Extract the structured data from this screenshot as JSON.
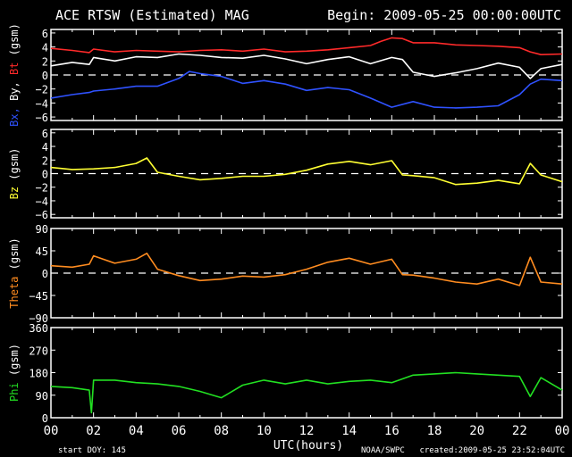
{
  "header": {
    "title": "ACE RTSW (Estimated) MAG",
    "begin": "Begin: 2009-05-25 00:00:00UTC"
  },
  "footer": {
    "start_doy": "start DOY: 145",
    "xlabel": "UTC(hours)",
    "source": "NOAA/SWPC",
    "created": "created:2009-05-25 23:52:04UTC"
  },
  "x_ticks": [
    "00",
    "02",
    "04",
    "06",
    "08",
    "10",
    "12",
    "14",
    "16",
    "18",
    "20",
    "22",
    "00"
  ],
  "colors": {
    "bx": "#2f52ff",
    "by": "#ffffff",
    "bt": "#ff2a2a",
    "bz": "#ffff33",
    "theta": "#ff8c20",
    "phi": "#22e022",
    "axis": "#ffffff"
  },
  "chart_data": [
    {
      "type": "line",
      "ylabel_parts": [
        "Bx,",
        " By,",
        " Bt",
        " (gsm)"
      ],
      "ylim": [
        -6.5,
        6.5
      ],
      "yticks": [
        6,
        4,
        2,
        0,
        -2,
        -4,
        -6
      ],
      "xlim": [
        0,
        24
      ],
      "zero_line": true,
      "series": [
        {
          "key": "bt",
          "x": [
            0,
            1,
            1.8,
            2,
            3,
            4,
            5,
            6,
            7,
            8,
            9,
            10,
            11,
            12,
            13,
            14,
            15,
            15.5,
            16,
            16.5,
            17,
            18,
            19,
            20,
            21,
            22,
            22.5,
            23,
            24
          ],
          "values": [
            3.8,
            3.5,
            3.2,
            3.7,
            3.3,
            3.5,
            3.4,
            3.3,
            3.5,
            3.6,
            3.4,
            3.7,
            3.3,
            3.4,
            3.6,
            3.9,
            4.2,
            4.8,
            5.3,
            5.2,
            4.6,
            4.6,
            4.3,
            4.2,
            4.1,
            3.9,
            3.3,
            2.9,
            3.0
          ]
        },
        {
          "key": "by",
          "x": [
            0,
            1,
            1.8,
            2,
            3,
            4,
            5,
            6,
            7,
            8,
            9,
            10,
            11,
            12,
            13,
            14,
            15,
            16,
            16.5,
            17,
            18,
            19,
            20,
            21,
            22,
            22.5,
            23,
            24
          ],
          "values": [
            1.3,
            1.8,
            1.5,
            2.5,
            2.0,
            2.6,
            2.5,
            3.0,
            2.8,
            2.5,
            2.4,
            2.8,
            2.3,
            1.6,
            2.2,
            2.6,
            1.6,
            2.5,
            2.2,
            0.4,
            -0.2,
            0.3,
            0.9,
            1.7,
            1.1,
            -0.5,
            0.9,
            1.5
          ]
        },
        {
          "key": "bx",
          "x": [
            0,
            1,
            1.8,
            2,
            3,
            4,
            5,
            6,
            6.5,
            7,
            8,
            9,
            10,
            11,
            12,
            13,
            14,
            15,
            16,
            17,
            18,
            19,
            20,
            21,
            22,
            22.5,
            23,
            24
          ],
          "values": [
            -3.3,
            -2.8,
            -2.5,
            -2.3,
            -2.0,
            -1.6,
            -1.6,
            -0.5,
            0.5,
            0.2,
            -0.2,
            -1.2,
            -0.8,
            -1.3,
            -2.2,
            -1.8,
            -2.1,
            -3.3,
            -4.6,
            -3.8,
            -4.6,
            -4.7,
            -4.6,
            -4.4,
            -2.8,
            -1.3,
            -0.6,
            -0.8
          ]
        }
      ]
    },
    {
      "type": "line",
      "ylabel": "Bz  (gsm)",
      "ylim": [
        -6.5,
        6.5
      ],
      "yticks": [
        6,
        4,
        2,
        0,
        -2,
        -4,
        -6
      ],
      "xlim": [
        0,
        24
      ],
      "zero_line": true,
      "series": [
        {
          "key": "bz",
          "x": [
            0,
            1,
            2,
            3,
            4,
            4.5,
            5,
            6,
            7,
            8,
            9,
            10,
            11,
            12,
            13,
            14,
            15,
            16,
            16.5,
            17,
            18,
            19,
            20,
            21,
            22,
            22.5,
            23,
            24
          ],
          "values": [
            0.9,
            0.6,
            0.7,
            0.9,
            1.5,
            2.3,
            0.2,
            -0.4,
            -0.9,
            -0.7,
            -0.4,
            -0.4,
            -0.1,
            0.5,
            1.4,
            1.8,
            1.3,
            1.9,
            -0.2,
            -0.3,
            -0.6,
            -1.6,
            -1.4,
            -1.0,
            -1.5,
            1.5,
            -0.2,
            -1.2
          ]
        }
      ]
    },
    {
      "type": "line",
      "ylabel": "Theta  (gsm)",
      "ylim": [
        -90,
        90
      ],
      "yticks": [
        90,
        45,
        0,
        -45,
        -90
      ],
      "xlim": [
        0,
        24
      ],
      "zero_line": true,
      "series": [
        {
          "key": "theta",
          "x": [
            0,
            1,
            1.8,
            2,
            3,
            4,
            4.5,
            5,
            6,
            7,
            8,
            9,
            10,
            11,
            12,
            13,
            14,
            15,
            16,
            16.5,
            17,
            18,
            19,
            20,
            21,
            22,
            22.5,
            23,
            24
          ],
          "values": [
            15,
            12,
            18,
            35,
            20,
            28,
            40,
            8,
            -5,
            -15,
            -12,
            -6,
            -8,
            -3,
            8,
            22,
            30,
            18,
            28,
            -3,
            -4,
            -10,
            -18,
            -22,
            -12,
            -25,
            32,
            -18,
            -22
          ]
        }
      ]
    },
    {
      "type": "line",
      "ylabel": "Phi  (gsm)",
      "ylim": [
        0,
        360
      ],
      "yticks": [
        360,
        270,
        180,
        90,
        0
      ],
      "xlim": [
        0,
        24
      ],
      "zero_line": false,
      "series": [
        {
          "key": "phi",
          "x": [
            0,
            1,
            1.8,
            1.9,
            2,
            3,
            4,
            5,
            6,
            7,
            8,
            9,
            10,
            11,
            12,
            13,
            14,
            15,
            16,
            17,
            18,
            19,
            20,
            21,
            22,
            22.5,
            23,
            24
          ],
          "values": [
            125,
            120,
            110,
            20,
            150,
            150,
            140,
            135,
            125,
            105,
            80,
            130,
            150,
            135,
            150,
            135,
            145,
            150,
            140,
            170,
            175,
            180,
            175,
            170,
            165,
            85,
            160,
            110
          ]
        }
      ]
    }
  ]
}
